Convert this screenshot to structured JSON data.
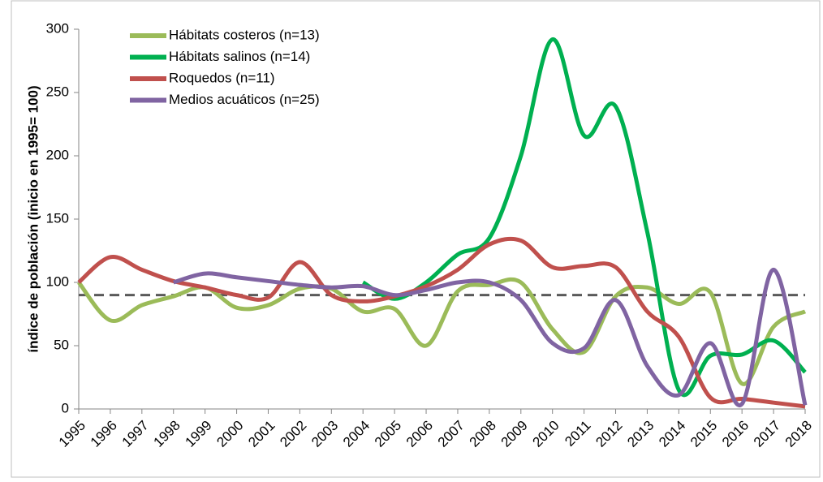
{
  "chart_data": {
    "type": "line",
    "y_label": "índice de población (inicio en 1995= 100)",
    "categories": [
      "1995",
      "1996",
      "1997",
      "1998",
      "1999",
      "2000",
      "2001",
      "2002",
      "2003",
      "2004",
      "2005",
      "2006",
      "2007",
      "2008",
      "2009",
      "2010",
      "2011",
      "2012",
      "2013",
      "2014",
      "2015",
      "2016",
      "2017",
      "2018"
    ],
    "series": [
      {
        "name": "Hábitats costeros (n=13)",
        "color": "#9bbb59",
        "values": [
          100,
          70,
          82,
          89,
          96,
          80,
          82,
          95,
          95,
          77,
          79,
          50,
          93,
          98,
          100,
          63,
          45,
          89,
          96,
          83,
          92,
          20,
          65,
          77
        ]
      },
      {
        "name": "Hábitats salinos (n=14)",
        "color": "#00b050",
        "values": [
          null,
          null,
          null,
          null,
          null,
          null,
          null,
          null,
          null,
          100,
          87,
          100,
          122,
          135,
          200,
          292,
          216,
          239,
          140,
          15,
          42,
          43,
          54,
          29
        ]
      },
      {
        "name": "Roquedos (n=11)",
        "color": "#c0504d",
        "values": [
          100,
          120,
          110,
          101,
          96,
          90,
          88,
          116,
          90,
          85,
          89,
          97,
          110,
          130,
          133,
          112,
          113,
          112,
          77,
          57,
          9,
          8,
          5,
          2
        ]
      },
      {
        "name": "Medios acuáticos (n=25)",
        "color": "#8064a2",
        "values": [
          null,
          null,
          null,
          100,
          107,
          104,
          101,
          98,
          96,
          97,
          90,
          94,
          100,
          100,
          86,
          52,
          48,
          86,
          34,
          11,
          52,
          4,
          110,
          3
        ]
      }
    ],
    "reference_line": 90,
    "reference_color": "#595959",
    "ylim": [
      0,
      300
    ],
    "yticks": [
      0,
      50,
      100,
      150,
      200,
      250,
      300
    ],
    "grid": false,
    "legend": "top-left",
    "smooth": true
  }
}
